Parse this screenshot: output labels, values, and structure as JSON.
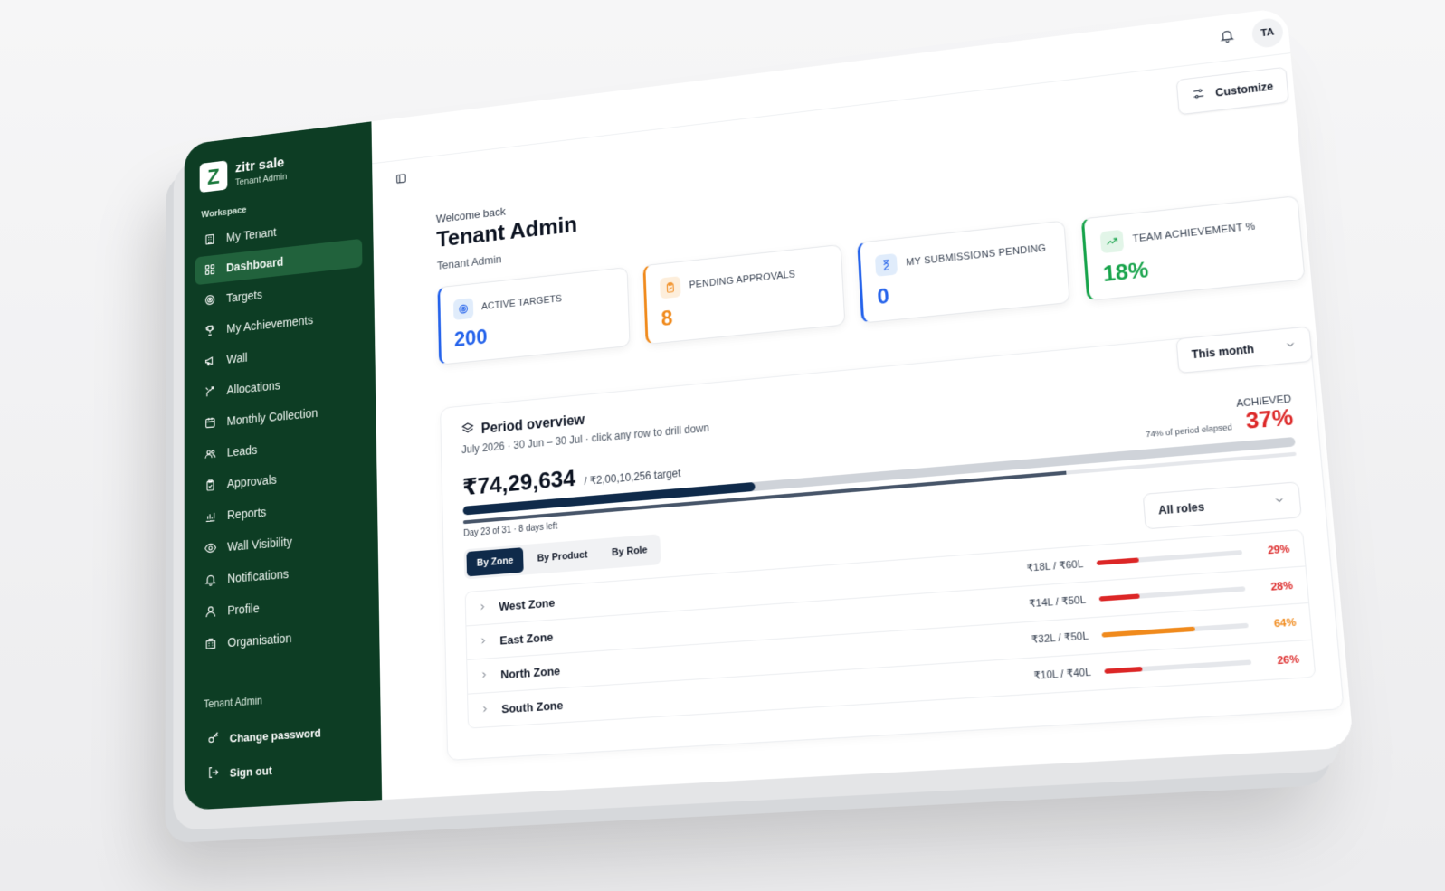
{
  "brand": {
    "logo_letter": "Z",
    "name": "zitr sale",
    "subtitle": "Tenant Admin"
  },
  "sidebar": {
    "section_label": "Workspace",
    "items": [
      {
        "label": "My Tenant",
        "icon": "building-icon",
        "active": false
      },
      {
        "label": "Dashboard",
        "icon": "grid-icon",
        "active": true
      },
      {
        "label": "Targets",
        "icon": "target-icon",
        "active": false
      },
      {
        "label": "My Achievements",
        "icon": "trophy-icon",
        "active": false
      },
      {
        "label": "Wall",
        "icon": "megaphone-icon",
        "active": false
      },
      {
        "label": "Allocations",
        "icon": "split-icon",
        "active": false
      },
      {
        "label": "Monthly Collection",
        "icon": "calendar-icon",
        "active": false
      },
      {
        "label": "Leads",
        "icon": "users-icon",
        "active": false
      },
      {
        "label": "Approvals",
        "icon": "clipboard-check-icon",
        "active": false
      },
      {
        "label": "Reports",
        "icon": "bar-chart-icon",
        "active": false
      },
      {
        "label": "Wall Visibility",
        "icon": "eye-icon",
        "active": false
      },
      {
        "label": "Notifications",
        "icon": "bell-icon",
        "active": false
      },
      {
        "label": "Profile",
        "icon": "user-icon",
        "active": false
      },
      {
        "label": "Organisation",
        "icon": "office-icon",
        "active": false
      }
    ],
    "footer_user": "Tenant Admin",
    "change_password": "Change password",
    "sign_out": "Sign out"
  },
  "topbar": {
    "avatar_initials": "TA"
  },
  "header": {
    "customize_label": "Customize",
    "welcome_small": "Welcome back",
    "welcome_title": "Tenant Admin",
    "welcome_role": "Tenant Admin"
  },
  "cards": [
    {
      "label": "ACTIVE TARGETS",
      "value": "200",
      "color": "#2563eb",
      "bg": "#e0ecfb",
      "icon": "target-icon"
    },
    {
      "label": "PENDING APPROVALS",
      "value": "8",
      "color": "#f08a1c",
      "bg": "#fdeedb",
      "icon": "clipboard-icon"
    },
    {
      "label": "MY SUBMISSIONS PENDING",
      "value": "0",
      "color": "#2563eb",
      "bg": "#e0ecfb",
      "icon": "hourglass-icon"
    },
    {
      "label": "TEAM ACHIEVEMENT %",
      "value": "18%",
      "color": "#16a34a",
      "bg": "#e2f5e8",
      "icon": "trending-up-icon"
    }
  ],
  "period_select": {
    "value": "This month"
  },
  "overview": {
    "title": "Period overview",
    "subtitle": "July 2026 · 30 Jun – 30 Jul · click any row to drill down",
    "amount": "₹74,29,634",
    "target": "/ ₹2,00,10,256 target",
    "achieved_label": "ACHIEVED",
    "elapsed_label": "74% of period elapsed",
    "achieved_pct": "37%",
    "achieved_fraction": 0.37,
    "elapsed_fraction": 0.74,
    "day_label": "Day 23 of 31 · 8 days left",
    "tabs": [
      {
        "label": "By Zone",
        "active": true
      },
      {
        "label": "By Product",
        "active": false
      },
      {
        "label": "By Role",
        "active": false
      }
    ],
    "roles_select": "All roles",
    "zones": [
      {
        "name": "West Zone",
        "values": "₹18L / ₹60L",
        "pct": "29%",
        "fraction": 0.29,
        "color": "#dc2626"
      },
      {
        "name": "East Zone",
        "values": "₹14L / ₹50L",
        "pct": "28%",
        "fraction": 0.28,
        "color": "#dc2626"
      },
      {
        "name": "North Zone",
        "values": "₹32L / ₹50L",
        "pct": "64%",
        "fraction": 0.64,
        "color": "#f08a1c"
      },
      {
        "name": "South Zone",
        "values": "₹10L / ₹40L",
        "pct": "26%",
        "fraction": 0.26,
        "color": "#dc2626"
      }
    ]
  }
}
